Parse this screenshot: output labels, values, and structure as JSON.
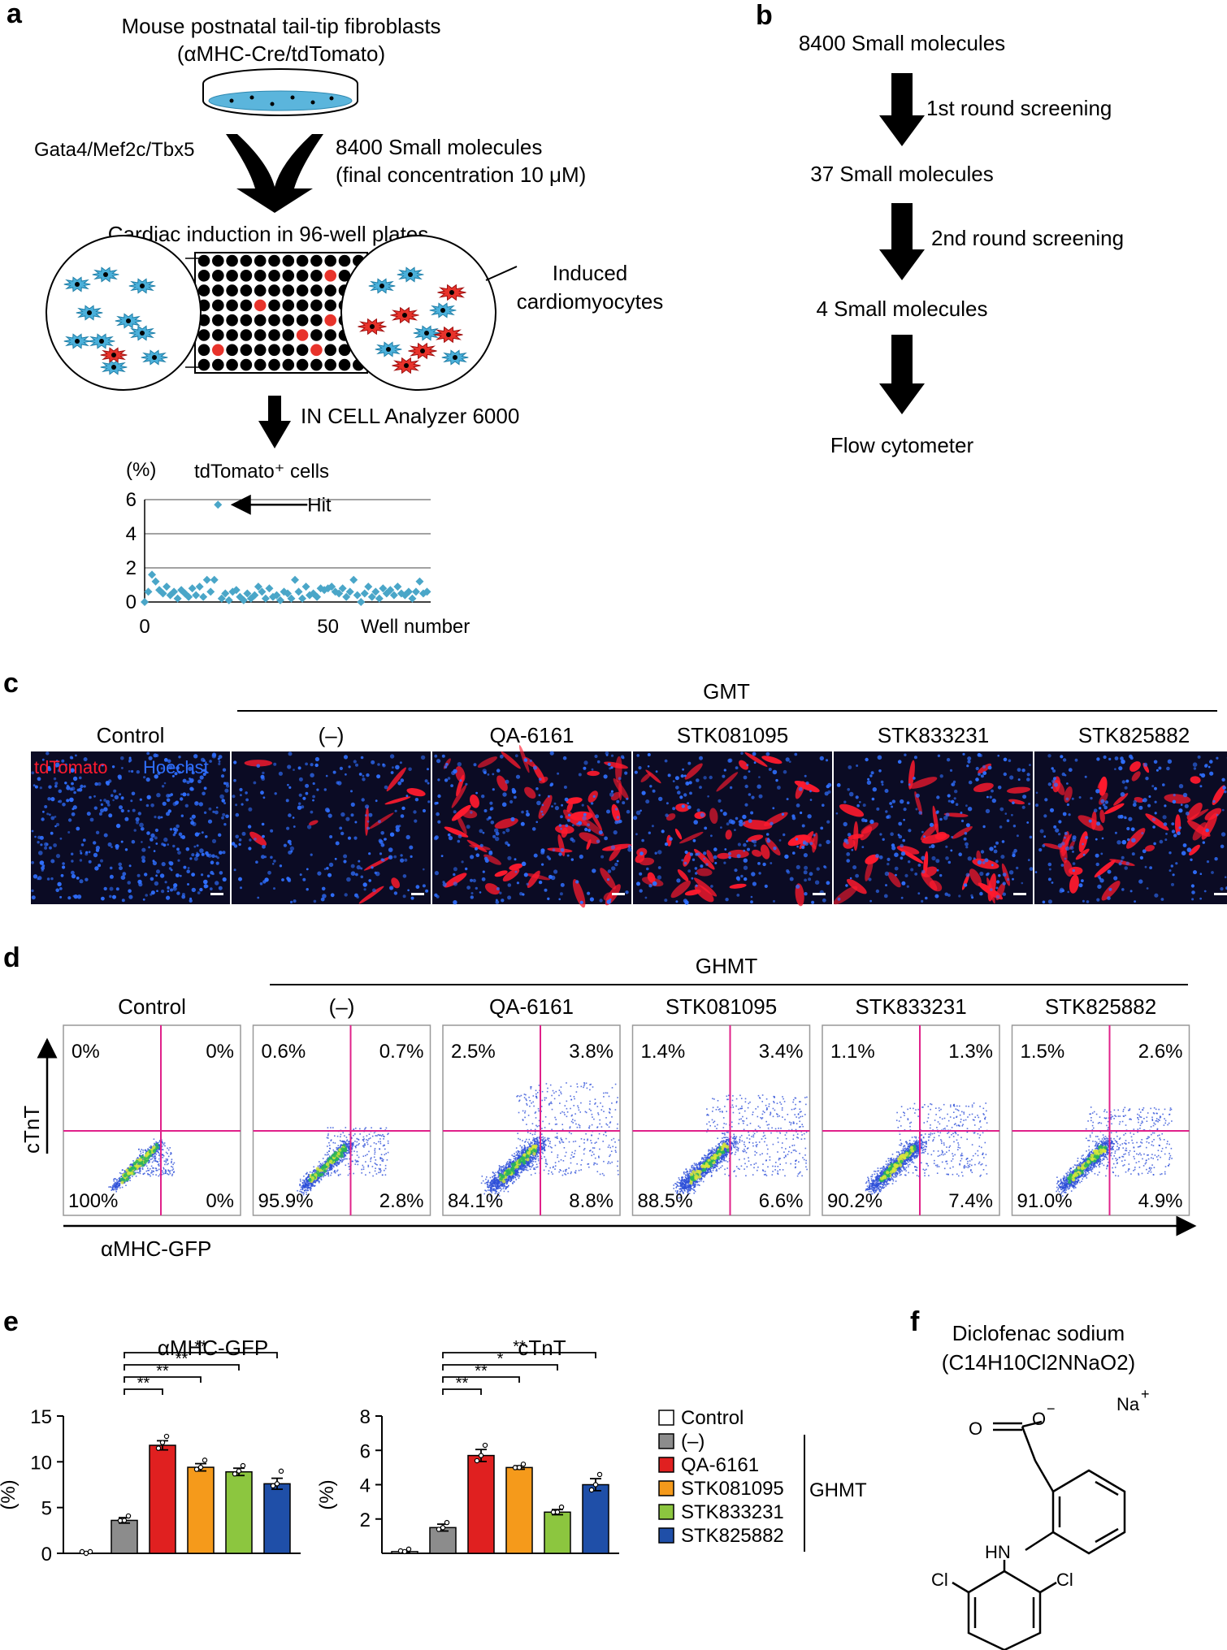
{
  "panels": {
    "a": "a",
    "b": "b",
    "c": "c",
    "d": "d",
    "e": "e",
    "f": "f"
  },
  "panel_a": {
    "title_line1": "Mouse postnatal tail-tip fibroblasts",
    "title_line2": "(αMHC-Cre/tdTomato)",
    "left_factor": "Gata4/Mef2c/Tbx5",
    "right_line1": "8400 Small molecules",
    "right_line2": "(final concentration 10 μM)",
    "induction": "Cardiac induction in 96-well plates",
    "induced_line1": "Induced",
    "induced_line2": "cardiomyocytes",
    "analyzer": "IN CELL Analyzer 6000"
  },
  "panel_b": {
    "steps": [
      "8400 Small molecules",
      "37 Small molecules",
      "4 Small molecules",
      "Flow cytometer"
    ],
    "arrows": [
      "1st round screening",
      "2nd round screening"
    ]
  },
  "panel_c": {
    "group": "GMT",
    "labels": [
      "Control",
      "(–)",
      "QA-6161",
      "STK081095",
      "STK833231",
      "STK825882"
    ],
    "stain1": "tdTomato",
    "stain2": "Hoechst",
    "intensity": [
      0.0,
      0.15,
      0.8,
      0.65,
      0.55,
      0.6
    ],
    "colors": {
      "red": "#ff1a2e",
      "blue": "#2f6fff",
      "bg": "#0b0b24"
    }
  },
  "panel_d": {
    "group": "GHMT",
    "ylabel": "cTnT",
    "xlabel": "αMHC-GFP",
    "plots": [
      {
        "name": "Control",
        "ul": "0%",
        "ur": "0%",
        "ll": "100%",
        "lr": "0%",
        "spread": 0.05
      },
      {
        "name": "(–)",
        "ul": "0.6%",
        "ur": "0.7%",
        "ll": "95.9%",
        "lr": "2.8%",
        "spread": 0.3
      },
      {
        "name": "QA-6161",
        "ul": "2.5%",
        "ur": "3.8%",
        "ll": "84.1%",
        "lr": "8.8%",
        "spread": 0.85
      },
      {
        "name": "STK081095",
        "ul": "1.4%",
        "ur": "3.4%",
        "ll": "88.5%",
        "lr": "6.6%",
        "spread": 0.7
      },
      {
        "name": "STK833231",
        "ul": "1.1%",
        "ur": "1.3%",
        "ll": "90.2%",
        "lr": "7.4%",
        "spread": 0.6
      },
      {
        "name": "STK825882",
        "ul": "1.5%",
        "ur": "2.6%",
        "ll": "91.0%",
        "lr": "4.9%",
        "spread": 0.55
      }
    ]
  },
  "panel_f": {
    "title_line1": "Diclofenac sodium",
    "title_line2": "(C14H10Cl2NNaO2)",
    "atoms": {
      "o1": "O",
      "o2": "O",
      "minus": "−",
      "na": "Na",
      "plus": "+",
      "hn": "HN",
      "cl1": "Cl",
      "cl2": "Cl"
    }
  },
  "chart_data": [
    {
      "type": "scatter",
      "title": "tdTomato⁺ cells",
      "ylabel": "(%)",
      "xlabel": "Well number",
      "ylim": [
        0,
        6
      ],
      "yticks": [
        "0",
        "2",
        "4",
        "6"
      ],
      "xticks": [
        "0",
        "50"
      ],
      "annotation": "Hit",
      "hit": [
        20,
        5.7
      ],
      "color": "#4aa6c8",
      "points": [
        [
          0,
          0
        ],
        [
          1,
          0.6
        ],
        [
          2,
          1.6
        ],
        [
          3,
          1.2
        ],
        [
          4,
          0.7
        ],
        [
          5,
          0.5
        ],
        [
          6,
          0.9
        ],
        [
          7,
          0.4
        ],
        [
          8,
          0.6
        ],
        [
          9,
          0.2
        ],
        [
          10,
          0.7
        ],
        [
          11,
          0.5
        ],
        [
          12,
          0.3
        ],
        [
          13,
          0.8
        ],
        [
          14,
          0.4
        ],
        [
          15,
          0.9
        ],
        [
          16,
          0.3
        ],
        [
          17,
          1.3
        ],
        [
          18,
          0.6
        ],
        [
          19,
          1.3
        ],
        [
          20,
          5.7
        ],
        [
          21,
          0.2
        ],
        [
          22,
          0.5
        ],
        [
          23,
          0.1
        ],
        [
          24,
          0.6
        ],
        [
          25,
          0.7
        ],
        [
          26,
          0.3
        ],
        [
          27,
          0.1
        ],
        [
          28,
          0.5
        ],
        [
          29,
          0.2
        ],
        [
          30,
          0.4
        ],
        [
          31,
          0.9
        ],
        [
          32,
          0.6
        ],
        [
          33,
          0.2
        ],
        [
          34,
          0.8
        ],
        [
          35,
          0.3
        ],
        [
          36,
          0.4
        ],
        [
          37,
          0.1
        ],
        [
          38,
          0.6
        ],
        [
          39,
          0.5
        ],
        [
          40,
          0.2
        ],
        [
          41,
          1.3
        ],
        [
          42,
          0.6
        ],
        [
          43,
          0.2
        ],
        [
          44,
          0.9
        ],
        [
          45,
          0.4
        ],
        [
          46,
          0.5
        ],
        [
          47,
          0.3
        ],
        [
          48,
          0.8
        ],
        [
          49,
          0.7
        ],
        [
          50,
          0.8
        ],
        [
          51,
          0.9
        ],
        [
          52,
          0.6
        ],
        [
          53,
          0.5
        ],
        [
          54,
          0.8
        ],
        [
          55,
          0.3
        ],
        [
          56,
          0.6
        ],
        [
          57,
          1.3
        ],
        [
          58,
          0.4
        ],
        [
          59,
          0.0
        ],
        [
          60,
          0.5
        ],
        [
          61,
          0.9
        ],
        [
          62,
          0.3
        ],
        [
          63,
          0.6
        ],
        [
          64,
          0.2
        ],
        [
          65,
          0.8
        ],
        [
          66,
          0.5
        ],
        [
          67,
          0.7
        ],
        [
          68,
          0.4
        ],
        [
          69,
          0.9
        ],
        [
          70,
          0.5
        ],
        [
          71,
          0.4
        ],
        [
          72,
          0.6
        ],
        [
          73,
          0.2
        ],
        [
          74,
          0.6
        ],
        [
          75,
          1.2
        ],
        [
          76,
          0.5
        ],
        [
          77,
          0.6
        ]
      ]
    },
    {
      "type": "bar",
      "title": "αMHC-GFP",
      "ylabel": "(%)",
      "ylim": [
        0,
        15
      ],
      "yticks": [
        "0",
        "5",
        "10",
        "15"
      ],
      "categories": [
        "Control",
        "(–)",
        "QA-6161",
        "STK081095",
        "STK833231",
        "STK825882"
      ],
      "values": [
        0,
        3.6,
        11.8,
        9.4,
        8.9,
        7.6
      ],
      "errors": [
        0,
        0.3,
        0.5,
        0.4,
        0.4,
        0.6
      ],
      "points": [
        [
          0,
          0,
          0
        ],
        [
          3.4,
          3.6,
          3.9
        ],
        [
          11.3,
          12.1,
          12.6
        ],
        [
          9.0,
          9.4,
          10.0
        ],
        [
          8.5,
          9.0,
          9.4
        ],
        [
          7.2,
          7.6,
          8.8
        ]
      ],
      "colors": [
        "#ffffff",
        "#8c8c8c",
        "#e02020",
        "#f59a1b",
        "#8cc63f",
        "#1f4fa8"
      ],
      "sig_labels": [
        "**",
        "**",
        "**",
        "**"
      ],
      "sig_targets": [
        2,
        3,
        4,
        5
      ]
    },
    {
      "type": "bar",
      "title": "cTnT",
      "ylabel": "(%)",
      "ylim": [
        0,
        8
      ],
      "yticks": [
        "2",
        "4",
        "6",
        "8"
      ],
      "categories": [
        "Control",
        "(–)",
        "QA-6161",
        "STK081095",
        "STK833231",
        "STK825882"
      ],
      "values": [
        0.1,
        1.5,
        5.7,
        5.0,
        2.4,
        4.0
      ],
      "errors": [
        0.05,
        0.2,
        0.35,
        0.1,
        0.15,
        0.35
      ],
      "points": [
        [
          0.05,
          0.1,
          0.15
        ],
        [
          1.3,
          1.5,
          1.7
        ],
        [
          5.3,
          5.7,
          6.2
        ],
        [
          4.9,
          5.0,
          5.1
        ],
        [
          2.3,
          2.4,
          2.6
        ],
        [
          3.6,
          4.0,
          4.5
        ]
      ],
      "colors": [
        "#ffffff",
        "#8c8c8c",
        "#e02020",
        "#f59a1b",
        "#8cc63f",
        "#1f4fa8"
      ],
      "sig_labels": [
        "**",
        "**",
        "*",
        "**"
      ],
      "sig_targets": [
        2,
        3,
        4,
        5
      ]
    }
  ],
  "legend": {
    "items": [
      {
        "label": "Control",
        "color": "#ffffff"
      },
      {
        "label": "(–)",
        "color": "#8c8c8c"
      },
      {
        "label": "QA-6161",
        "color": "#e02020"
      },
      {
        "label": "STK081095",
        "color": "#f59a1b"
      },
      {
        "label": "STK833231",
        "color": "#8cc63f"
      },
      {
        "label": "STK825882",
        "color": "#1f4fa8"
      }
    ],
    "group": "GHMT"
  }
}
